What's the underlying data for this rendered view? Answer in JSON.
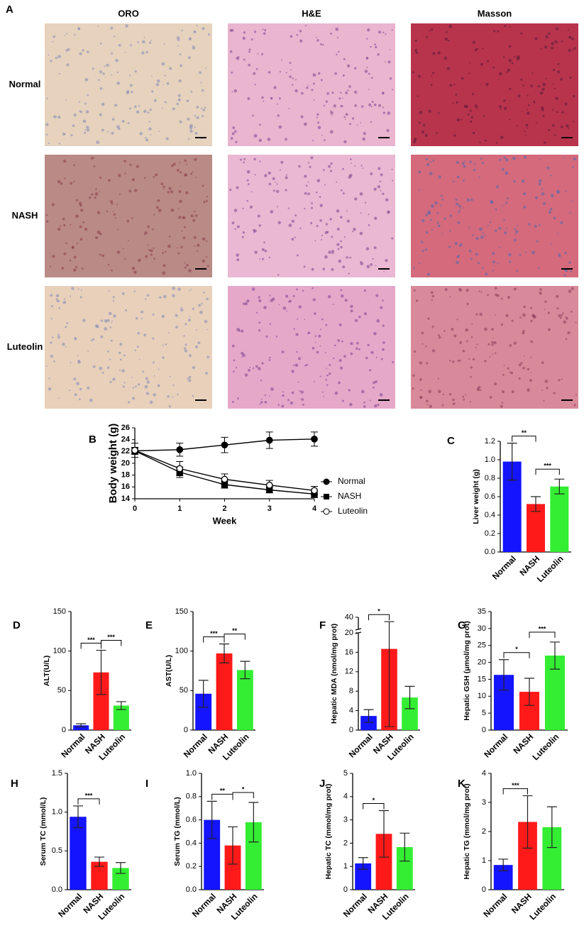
{
  "panel_a": {
    "label": "A",
    "columns": [
      "ORO",
      "H&E",
      "Masson"
    ],
    "rows": [
      "Normal",
      "NASH",
      "Luteolin"
    ]
  },
  "chart_data": [
    {
      "type": "line",
      "panel": "B",
      "ylabel": "Body weight (g)",
      "xlabel": "Week",
      "x": [
        0,
        1,
        2,
        3,
        4
      ],
      "xlim": [
        0,
        4
      ],
      "xticks": [
        0,
        1,
        2,
        3,
        4
      ],
      "ylim": [
        14,
        26
      ],
      "yticks": [
        14,
        16,
        18,
        20,
        22,
        24,
        26
      ],
      "color": "#000000",
      "series": [
        {
          "name": "Normal",
          "marker": "circle",
          "values": [
            22.1,
            22.3,
            23.1,
            23.9,
            24.1
          ],
          "errors": [
            0.6,
            1.1,
            1.3,
            1.4,
            1.2
          ]
        },
        {
          "name": "NASH",
          "marker": "square",
          "values": [
            22.1,
            18.5,
            16.4,
            15.5,
            14.8
          ],
          "errors": [
            0.6,
            0.9,
            0.6,
            0.5,
            0.6
          ]
        },
        {
          "name": "Luteolin",
          "marker": "open-circle",
          "values": [
            22.2,
            19.1,
            17.3,
            16.3,
            15.4
          ],
          "errors": [
            1.2,
            1.2,
            0.9,
            0.8,
            0.7
          ]
        }
      ]
    },
    {
      "type": "bar",
      "panel": "C",
      "ylabel": "Liver weight (g)",
      "categories": [
        "Normal",
        "NASH",
        "Luteolin"
      ],
      "colors": [
        "#1414ff",
        "#ff1a1a",
        "#33ee33"
      ],
      "values": [
        0.98,
        0.52,
        0.71
      ],
      "errors": [
        0.2,
        0.08,
        0.08
      ],
      "ylim": [
        0,
        1.2
      ],
      "yticks": [
        {
          "value": 0,
          "label": "0.0"
        },
        0.2,
        0.4,
        0.6,
        0.8,
        {
          "value": 1,
          "label": "1.0"
        },
        1.2
      ],
      "significance": [
        {
          "groups": [
            "Normal",
            "NASH"
          ],
          "label": "**"
        },
        {
          "groups": [
            "NASH",
            "Luteolin"
          ],
          "label": "***"
        }
      ]
    },
    {
      "type": "bar",
      "panel": "D",
      "ylabel": "ALT(U/L)",
      "categories": [
        "Normal",
        "NASH",
        "Luteolin"
      ],
      "colors": [
        "#1414ff",
        "#ff1a1a",
        "#33ee33"
      ],
      "values": [
        6,
        73,
        31
      ],
      "errors": [
        2,
        28,
        5
      ],
      "ylim": [
        0,
        150
      ],
      "yticks": [
        0,
        50,
        100,
        150
      ],
      "significance": [
        {
          "groups": [
            "Normal",
            "NASH"
          ],
          "label": "***"
        },
        {
          "groups": [
            "NASH",
            "Luteolin"
          ],
          "label": "***"
        }
      ]
    },
    {
      "type": "bar",
      "panel": "E",
      "ylabel": "AST(U/L)",
      "categories": [
        "Normal",
        "NASH",
        "Luteolin"
      ],
      "colors": [
        "#1414ff",
        "#ff1a1a",
        "#33ee33"
      ],
      "values": [
        46,
        97,
        76
      ],
      "errors": [
        17,
        12,
        11
      ],
      "ylim": [
        0,
        150
      ],
      "yticks": [
        0,
        50,
        100,
        150
      ],
      "significance": [
        {
          "groups": [
            "Normal",
            "NASH"
          ],
          "label": "***"
        },
        {
          "groups": [
            "NASH",
            "Luteolin"
          ],
          "label": "**"
        }
      ]
    },
    {
      "type": "bar",
      "panel": "F",
      "ylabel": "Hepatic MDA (nmol/mg prot)",
      "categories": [
        "Normal",
        "NASH",
        "Luteolin"
      ],
      "colors": [
        "#1414ff",
        "#ff1a1a",
        "#33ee33"
      ],
      "values": [
        2.9,
        16.7,
        6.7
      ],
      "errors": [
        1.3,
        16,
        2.3
      ],
      "ylim": [
        0,
        40
      ],
      "y_break": 20,
      "yticks": [
        0,
        4,
        8,
        12,
        16,
        20,
        40
      ],
      "significance": [
        {
          "groups": [
            "Normal",
            "NASH"
          ],
          "label": "*"
        }
      ]
    },
    {
      "type": "bar",
      "panel": "G",
      "ylabel": "Hepatic GSH (μmol/mg prot)",
      "categories": [
        "Normal",
        "NASH",
        "Luteolin"
      ],
      "colors": [
        "#1414ff",
        "#ff1a1a",
        "#33ee33"
      ],
      "values": [
        16.3,
        11.3,
        22
      ],
      "errors": [
        4.5,
        4,
        4
      ],
      "ylim": [
        0,
        35
      ],
      "yticks": [
        0,
        5,
        10,
        15,
        20,
        25,
        30,
        35
      ],
      "significance": [
        {
          "groups": [
            "Normal",
            "NASH"
          ],
          "label": "*"
        },
        {
          "groups": [
            "NASH",
            "Luteolin"
          ],
          "label": "***"
        }
      ]
    },
    {
      "type": "bar",
      "panel": "H",
      "ylabel": "Serum TC (mmol/L)",
      "categories": [
        "Normal",
        "NASH",
        "Luteolin"
      ],
      "colors": [
        "#1414ff",
        "#ff1a1a",
        "#33ee33"
      ],
      "values": [
        0.94,
        0.36,
        0.28
      ],
      "errors": [
        0.14,
        0.06,
        0.07
      ],
      "ylim": [
        0,
        1.5
      ],
      "yticks": [
        {
          "value": 0,
          "label": "0.0"
        },
        0.5,
        {
          "value": 1,
          "label": "1.0"
        },
        1.5
      ],
      "significance": [
        {
          "groups": [
            "Normal",
            "NASH"
          ],
          "label": "***"
        }
      ]
    },
    {
      "type": "bar",
      "panel": "I",
      "ylabel": "Serum TG (mmol/L)",
      "categories": [
        "Normal",
        "NASH",
        "Luteolin"
      ],
      "colors": [
        "#1414ff",
        "#ff1a1a",
        "#33ee33"
      ],
      "values": [
        0.6,
        0.38,
        0.58
      ],
      "errors": [
        0.16,
        0.16,
        0.17
      ],
      "ylim": [
        0,
        1
      ],
      "yticks": [
        {
          "value": 0,
          "label": "0.0"
        },
        0.2,
        0.4,
        0.6,
        0.8,
        {
          "value": 1,
          "label": "1.0"
        }
      ],
      "significance": [
        {
          "groups": [
            "Normal",
            "NASH"
          ],
          "label": "**"
        },
        {
          "groups": [
            "NASH",
            "Luteolin"
          ],
          "label": "*"
        }
      ]
    },
    {
      "type": "bar",
      "panel": "J",
      "ylabel": "Hepatic TC (mmol/mg prot)",
      "categories": [
        "Normal",
        "NASH",
        "Luteolin"
      ],
      "colors": [
        "#1414ff",
        "#ff1a1a",
        "#33ee33"
      ],
      "values": [
        1.13,
        2.4,
        1.83
      ],
      "errors": [
        0.25,
        1,
        0.6
      ],
      "ylim": [
        0,
        5
      ],
      "yticks": [
        0,
        1,
        2,
        3,
        4,
        5
      ],
      "significance": [
        {
          "groups": [
            "Normal",
            "NASH"
          ],
          "label": "*"
        }
      ]
    },
    {
      "type": "bar",
      "panel": "K",
      "ylabel": "Hepatic TG (mmol/mg prot)",
      "categories": [
        "Normal",
        "NASH",
        "Luteolin"
      ],
      "colors": [
        "#1414ff",
        "#ff1a1a",
        "#33ee33"
      ],
      "values": [
        0.85,
        2.33,
        2.15
      ],
      "errors": [
        0.2,
        0.9,
        0.7
      ],
      "ylim": [
        0,
        4
      ],
      "yticks": [
        0,
        1,
        2,
        3,
        4
      ],
      "significance": [
        {
          "groups": [
            "Normal",
            "NASH"
          ],
          "label": "***"
        }
      ]
    }
  ]
}
